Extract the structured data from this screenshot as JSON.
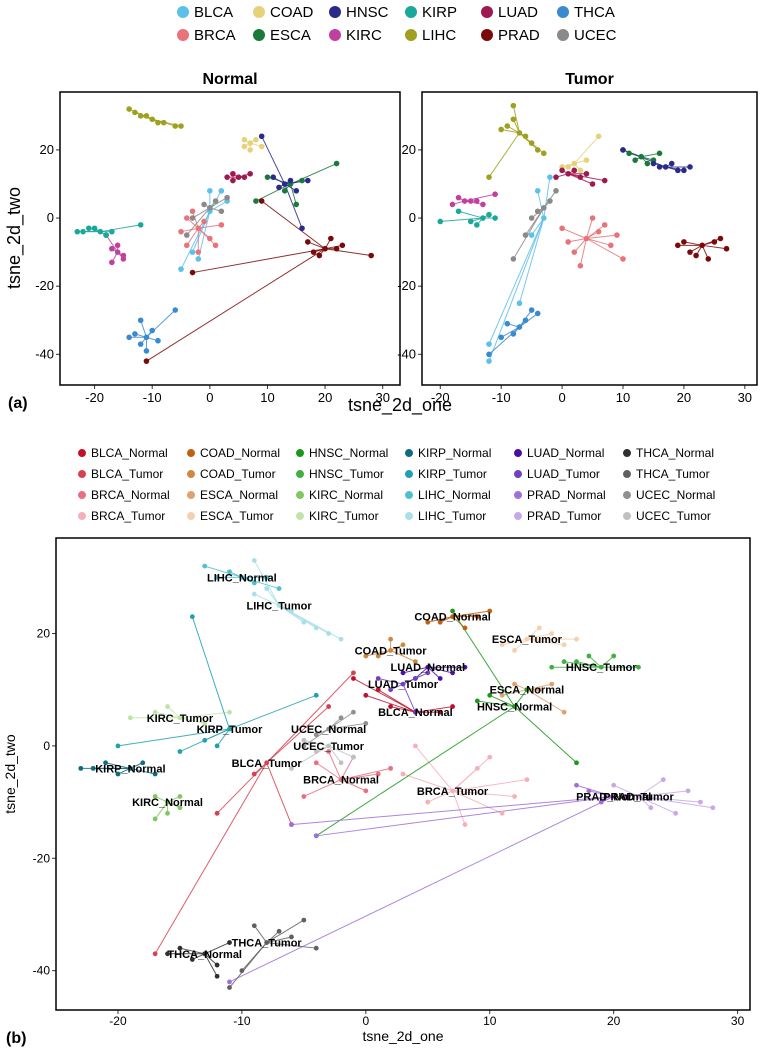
{
  "chart_data": [
    {
      "type": "scatter",
      "title": "Normal",
      "panel_label": "(a)",
      "xlabel": "tsne_2d_one",
      "ylabel": "tsne_2d_two",
      "legend": "top",
      "xlim": [
        -26,
        33
      ],
      "ylim": [
        -49,
        37
      ],
      "xticks": [
        -20,
        -10,
        0,
        10,
        20,
        30
      ],
      "yticks": [
        -40,
        -20,
        0,
        20
      ],
      "series": [
        {
          "name": "BLCA",
          "color": "#5bc0eb",
          "x": [
            0,
            0,
            2,
            -2,
            -5,
            -3,
            3
          ],
          "values": [
            2,
            8,
            8,
            -12,
            -15,
            -10,
            5
          ]
        },
        {
          "name": "BRCA",
          "color": "#e8737a",
          "x": [
            -2,
            -4,
            -3,
            -1,
            0,
            1,
            -2,
            -5,
            2,
            -4
          ],
          "values": [
            -3,
            0,
            2,
            -1,
            -6,
            -8,
            -10,
            -4,
            -2,
            -8
          ]
        },
        {
          "name": "COAD",
          "color": "#e6d27a",
          "x": [
            7,
            6,
            8,
            9,
            7,
            6
          ],
          "values": [
            22,
            21,
            23,
            21,
            20,
            23
          ]
        },
        {
          "name": "ESCA",
          "color": "#1a7a3a",
          "x": [
            14,
            10,
            13,
            16,
            22,
            8,
            15
          ],
          "values": [
            10,
            12,
            8,
            11,
            16,
            5,
            4
          ]
        },
        {
          "name": "HNSC",
          "color": "#2a2a8a",
          "x": [
            13,
            12,
            14,
            15,
            9,
            17,
            16,
            11
          ],
          "values": [
            10,
            9,
            11,
            8,
            24,
            11,
            -3,
            12
          ]
        },
        {
          "name": "KIRC",
          "color": "#c040a0",
          "x": [
            -16,
            -17,
            -15,
            -16,
            -17,
            -15,
            -18
          ],
          "values": [
            -10,
            -9,
            -12,
            -8,
            -13,
            -11,
            -5
          ]
        },
        {
          "name": "KIRP",
          "color": "#1aa89a",
          "x": [
            -19,
            -22,
            -20,
            -18,
            -17,
            -21,
            -12,
            -23
          ],
          "values": [
            -4,
            -4,
            -3,
            -5,
            -4,
            -3,
            -2,
            -4
          ]
        },
        {
          "name": "LIHC",
          "color": "#a0a020",
          "x": [
            -10,
            -13,
            -12,
            -8,
            -6,
            -5,
            -11,
            -9,
            -14
          ],
          "values": [
            29,
            31,
            30,
            28,
            27,
            27,
            30,
            28,
            32
          ]
        },
        {
          "name": "LUAD",
          "color": "#a01850",
          "x": [
            5,
            3,
            4,
            6,
            7,
            4
          ],
          "values": [
            12,
            12,
            13,
            12,
            13,
            11
          ]
        },
        {
          "name": "PRAD",
          "color": "#7a0a0a",
          "x": [
            20,
            17,
            18,
            22,
            23,
            19,
            21,
            28,
            -11,
            -3,
            9
          ],
          "values": [
            -9,
            -7,
            -10,
            -9,
            -8,
            -11,
            -6,
            -11,
            -42,
            -16,
            5
          ]
        },
        {
          "name": "THCA",
          "color": "#3a8ad0",
          "x": [
            -11,
            -13,
            -12,
            -10,
            -9,
            -14,
            -11,
            -12,
            -6
          ],
          "values": [
            -35,
            -34,
            -37,
            -33,
            -36,
            -35,
            -39,
            -30,
            -27
          ]
        },
        {
          "name": "UCEC",
          "color": "#8a8a8a",
          "x": [
            0,
            -1,
            1,
            3,
            -3,
            2,
            -4
          ],
          "values": [
            3,
            4,
            5,
            6,
            0,
            2,
            -5
          ]
        }
      ]
    },
    {
      "type": "scatter",
      "title": "Tumor",
      "xlim": [
        -23,
        32
      ],
      "ylim": [
        -49,
        37
      ],
      "xticks": [
        -20,
        -10,
        0,
        10,
        20,
        30
      ],
      "yticks": [
        -40,
        -20,
        0,
        20
      ],
      "series": [
        {
          "name": "BLCA",
          "color": "#5bc0eb",
          "x": [
            -3,
            -12,
            -12,
            -7,
            -2,
            -4,
            -5
          ],
          "values": [
            0,
            -37,
            -42,
            -25,
            12,
            8,
            -5
          ]
        },
        {
          "name": "BRCA",
          "color": "#e8737a",
          "x": [
            4,
            0,
            2,
            6,
            8,
            10,
            3,
            5,
            7,
            1,
            9
          ],
          "values": [
            -6,
            -3,
            -10,
            -4,
            -8,
            -12,
            -14,
            0,
            -2,
            -7,
            -5
          ]
        },
        {
          "name": "COAD",
          "color": "#e6d27a",
          "x": [
            2,
            0,
            4,
            3,
            6,
            1
          ],
          "values": [
            16,
            15,
            17,
            14,
            24,
            15
          ]
        },
        {
          "name": "ESCA",
          "color": "#1a7a3a",
          "x": [
            13,
            11,
            15,
            16,
            12,
            14,
            10
          ],
          "values": [
            18,
            19,
            17,
            19,
            17,
            16,
            20
          ]
        },
        {
          "name": "HNSC",
          "color": "#2a2a8a",
          "x": [
            17,
            15,
            19,
            21,
            18,
            20,
            16,
            10
          ],
          "values": [
            15,
            16,
            14,
            15,
            16,
            14,
            15,
            20
          ]
        },
        {
          "name": "KIRC",
          "color": "#c040a0",
          "x": [
            -16,
            -18,
            -14,
            -13,
            -17,
            -15,
            -11
          ],
          "values": [
            5,
            4,
            5,
            4,
            6,
            5,
            7
          ]
        },
        {
          "name": "KIRP",
          "color": "#1aa89a",
          "x": [
            -13,
            -15,
            -12,
            -11,
            -17,
            -20,
            -14
          ],
          "values": [
            0,
            -1,
            1,
            0,
            2,
            -1,
            -2
          ]
        },
        {
          "name": "LIHC",
          "color": "#a0a020",
          "x": [
            -7,
            -9,
            -10,
            -6,
            -5,
            -4,
            -8,
            -3,
            -12,
            -8
          ],
          "values": [
            25,
            27,
            26,
            24,
            22,
            20,
            33,
            19,
            12,
            29
          ]
        },
        {
          "name": "LUAD",
          "color": "#a01850",
          "x": [
            1,
            2,
            3,
            4,
            0,
            -1,
            5,
            7
          ],
          "values": [
            13,
            14,
            12,
            13,
            14,
            12,
            10,
            11
          ]
        },
        {
          "name": "PRAD",
          "color": "#7a0a0a",
          "x": [
            23,
            20,
            21,
            25,
            27,
            24,
            22,
            19,
            26
          ],
          "values": [
            -8,
            -7,
            -10,
            -7,
            -9,
            -12,
            -11,
            -8,
            -6
          ]
        },
        {
          "name": "THCA",
          "color": "#3a8ad0",
          "x": [
            -7,
            -9,
            -8,
            -6,
            -4,
            -10,
            -12,
            -5
          ],
          "values": [
            -32,
            -31,
            -34,
            -30,
            -28,
            -35,
            -40,
            -27
          ]
        },
        {
          "name": "UCEC",
          "color": "#8a8a8a",
          "x": [
            -3,
            -2,
            -4,
            -5,
            -1,
            -8,
            -6
          ],
          "values": [
            3,
            5,
            2,
            0,
            8,
            -12,
            -5
          ]
        }
      ]
    },
    {
      "type": "scatter",
      "panel_label": "(b)",
      "xlabel": "tsne_2d_one",
      "ylabel": "tsne_2d_two",
      "legend": "top",
      "series_labels": true,
      "xlim": [
        -25,
        31
      ],
      "ylim": [
        -47,
        37
      ],
      "xticks": [
        -20,
        -10,
        0,
        10,
        20,
        30
      ],
      "yticks": [
        -40,
        -20,
        0,
        20
      ],
      "series": [
        {
          "name": "BLCA_Normal",
          "color": "#c0102a",
          "x": [
            4,
            2,
            6,
            1,
            0,
            7,
            -1
          ],
          "values": [
            6,
            7,
            6,
            10,
            9,
            7,
            12
          ]
        },
        {
          "name": "BLCA_Tumor",
          "color": "#d84050",
          "x": [
            -8,
            -17,
            -12,
            -6,
            -3,
            -1,
            -9
          ],
          "values": [
            -3,
            -37,
            -12,
            -14,
            7,
            13,
            -5
          ]
        },
        {
          "name": "BRCA_Normal",
          "color": "#e87080",
          "x": [
            -2,
            -4,
            -1,
            0,
            -3,
            1,
            -5,
            2
          ],
          "values": [
            -6,
            -3,
            -2,
            -8,
            -1,
            -5,
            -9,
            -4
          ]
        },
        {
          "name": "BRCA_Tumor",
          "color": "#f4b0b8",
          "x": [
            7,
            3,
            5,
            9,
            11,
            13,
            8,
            4,
            10,
            12
          ],
          "values": [
            -8,
            -5,
            -10,
            -4,
            -12,
            -6,
            -14,
            0,
            -2,
            -9
          ]
        },
        {
          "name": "COAD_Normal",
          "color": "#c06010",
          "x": [
            7,
            5,
            6,
            8,
            9,
            10
          ],
          "values": [
            23,
            22,
            22,
            21,
            23,
            24
          ]
        },
        {
          "name": "COAD_Tumor",
          "color": "#d08840",
          "x": [
            2,
            1,
            3,
            4,
            2,
            0
          ],
          "values": [
            17,
            16,
            18,
            15,
            19,
            16
          ]
        },
        {
          "name": "ESCA_Normal",
          "color": "#e0a070",
          "x": [
            13,
            11,
            12,
            14,
            15,
            16
          ],
          "values": [
            10,
            9,
            11,
            10,
            11,
            6
          ]
        },
        {
          "name": "ESCA_Tumor",
          "color": "#f4d0b0",
          "x": [
            13,
            12,
            15,
            16,
            17,
            14,
            11
          ],
          "values": [
            19,
            17,
            20,
            18,
            19,
            21,
            18
          ]
        },
        {
          "name": "HNSC_Normal",
          "color": "#1a9a1a",
          "x": [
            12,
            10,
            9,
            13,
            7,
            -4,
            17
          ],
          "values": [
            7,
            9,
            8,
            10,
            24,
            -16,
            -3
          ]
        },
        {
          "name": "HNSC_Tumor",
          "color": "#40b040",
          "x": [
            19,
            15,
            17,
            20,
            22,
            16,
            18
          ],
          "values": [
            14,
            14,
            15,
            16,
            14,
            15,
            16
          ]
        },
        {
          "name": "KIRC_Normal",
          "color": "#80c860",
          "x": [
            -16,
            -17,
            -15,
            -16,
            -15,
            -17
          ],
          "values": [
            -10,
            -9,
            -11,
            -12,
            -9,
            -13
          ]
        },
        {
          "name": "KIRC_Tumor",
          "color": "#c0e4a8",
          "x": [
            -15,
            -19,
            -17,
            -13,
            -11,
            -16
          ],
          "values": [
            5,
            5,
            6,
            4,
            6,
            7
          ]
        },
        {
          "name": "KIRP_Normal",
          "color": "#106a80",
          "x": [
            -19,
            -22,
            -21,
            -20,
            -18,
            -17,
            -23
          ],
          "values": [
            -4,
            -4,
            -3,
            -5,
            -3,
            -5,
            -4
          ]
        },
        {
          "name": "KIRP_Tumor",
          "color": "#20a0b0",
          "x": [
            -11,
            -13,
            -12,
            -15,
            -20,
            -4,
            -14
          ],
          "values": [
            3,
            1,
            0,
            -1,
            0,
            9,
            23
          ]
        },
        {
          "name": "LIHC_Normal",
          "color": "#50c0d0",
          "x": [
            -10,
            -13,
            -11,
            -9,
            -8,
            -7,
            -12
          ],
          "values": [
            30,
            32,
            31,
            29,
            30,
            28,
            30
          ]
        },
        {
          "name": "LIHC_Tumor",
          "color": "#a8e0e8",
          "x": [
            -7,
            -9,
            -6,
            -5,
            -4,
            -3,
            -8,
            -9,
            -2
          ],
          "values": [
            25,
            27,
            24,
            22,
            21,
            20,
            28,
            33,
            19
          ]
        },
        {
          "name": "LUAD_Normal",
          "color": "#4a10a0",
          "x": [
            5,
            3,
            6,
            7,
            8,
            4
          ],
          "values": [
            14,
            13,
            12,
            13,
            14,
            12
          ]
        },
        {
          "name": "LUAD_Tumor",
          "color": "#7040c0",
          "x": [
            3,
            1,
            2,
            4,
            5,
            4
          ],
          "values": [
            11,
            12,
            10,
            12,
            13,
            6
          ]
        },
        {
          "name": "PRAD_Normal",
          "color": "#a070d8",
          "x": [
            20,
            18,
            19,
            21,
            17,
            -4,
            -6,
            -11
          ],
          "values": [
            -9,
            -8,
            -10,
            -9,
            -7,
            -16,
            -14,
            -42
          ]
        },
        {
          "name": "PRAD_Tumor",
          "color": "#c8a8e8",
          "x": [
            22,
            24,
            26,
            27,
            25,
            23,
            20,
            28
          ],
          "values": [
            -9,
            -6,
            -8,
            -10,
            -12,
            -11,
            -7,
            -11
          ]
        },
        {
          "name": "THCA_Normal",
          "color": "#303030",
          "x": [
            -13,
            -15,
            -12,
            -11,
            -14,
            -12,
            -16
          ],
          "values": [
            -37,
            -36,
            -39,
            -35,
            -38,
            -41,
            -37
          ]
        },
        {
          "name": "THCA_Tumor",
          "color": "#606060",
          "x": [
            -8,
            -7,
            -6,
            -5,
            -9,
            -4,
            -10,
            -11
          ],
          "values": [
            -35,
            -33,
            -34,
            -31,
            -32,
            -36,
            -40,
            -43
          ]
        },
        {
          "name": "UCEC_Normal",
          "color": "#909090",
          "x": [
            -3,
            -2,
            -4,
            0,
            -1,
            -5
          ],
          "values": [
            3,
            5,
            2,
            4,
            6,
            0
          ]
        },
        {
          "name": "UCEC_Tumor",
          "color": "#c0c0c0",
          "x": [
            -3,
            -1,
            -5,
            -2,
            -6,
            -4
          ],
          "values": [
            0,
            -2,
            1,
            -3,
            -4,
            -1
          ]
        }
      ]
    }
  ]
}
